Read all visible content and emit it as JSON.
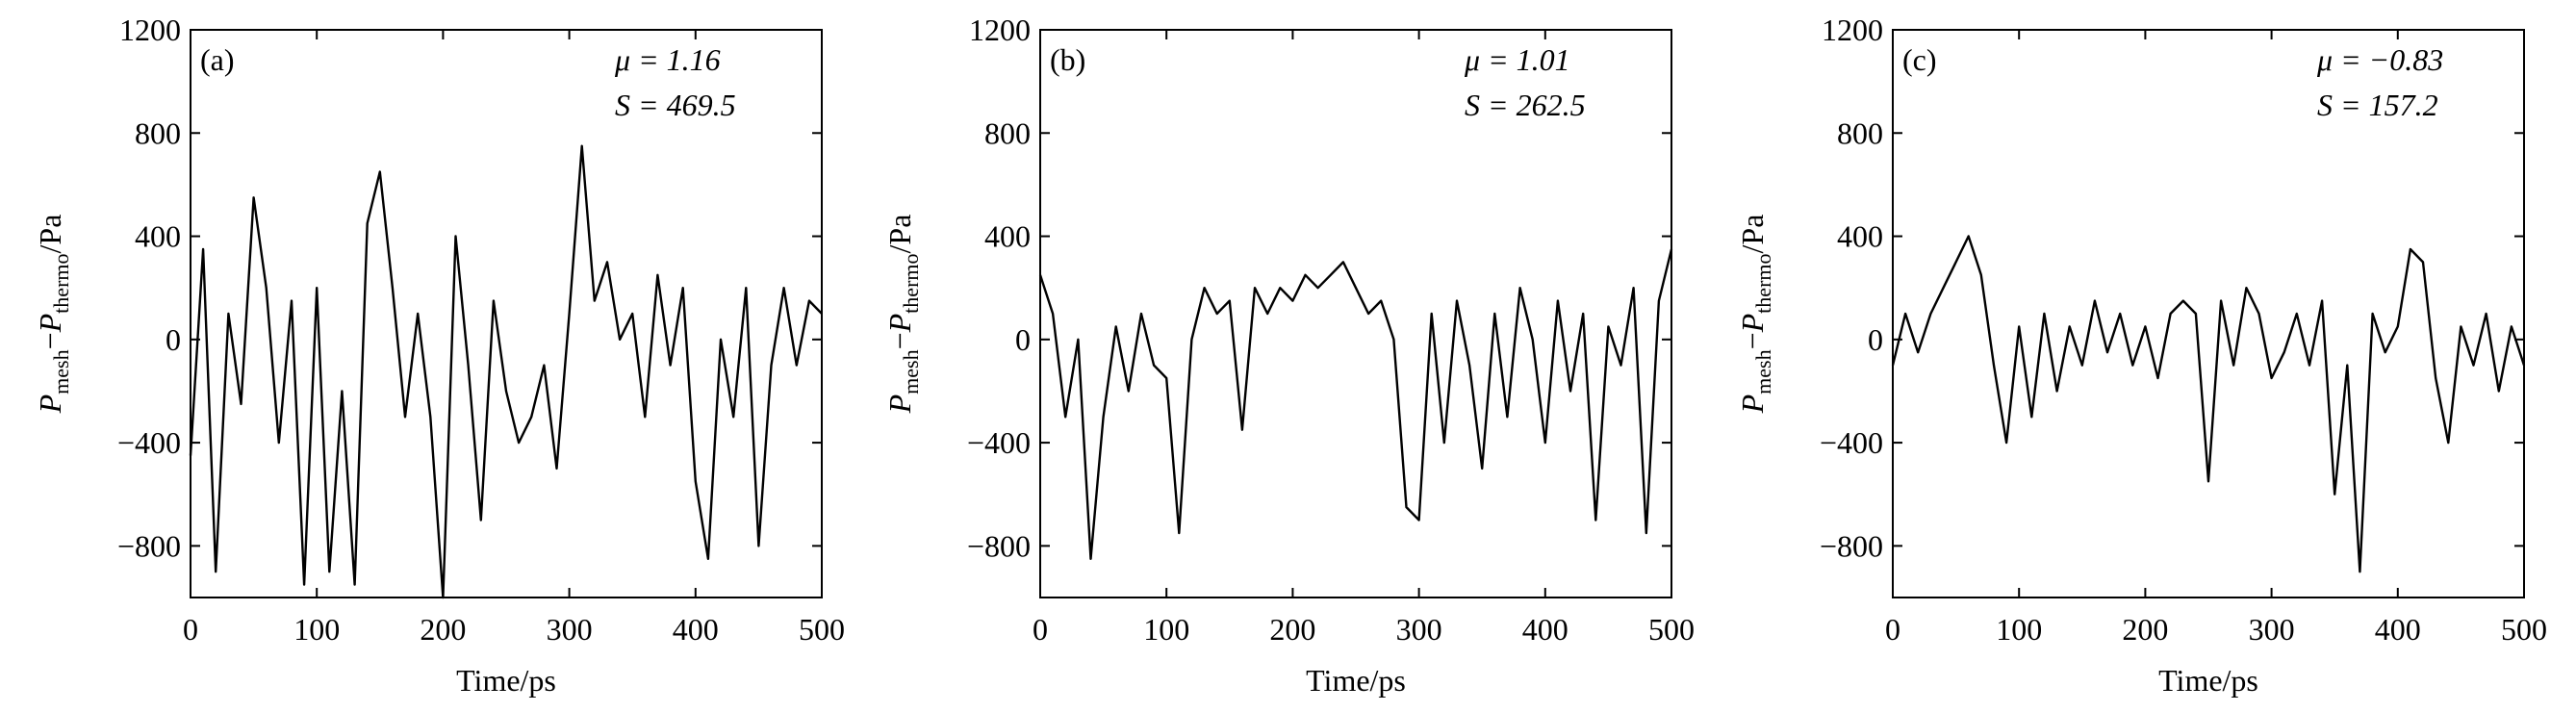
{
  "chart_data": [
    {
      "type": "line",
      "label": "(a)",
      "annotations": [
        "μ = 1.16",
        "S = 469.5"
      ],
      "xlabel": "Time/ps",
      "ylabel": [
        "P",
        "mesh",
        "−",
        "P",
        "thermo",
        "/Pa"
      ],
      "color": "#000000",
      "x": [
        0,
        10,
        20,
        30,
        40,
        50,
        60,
        70,
        80,
        90,
        100,
        110,
        120,
        130,
        140,
        150,
        160,
        170,
        180,
        190,
        200,
        210,
        220,
        230,
        240,
        250,
        260,
        270,
        280,
        290,
        300,
        310,
        320,
        330,
        340,
        350,
        360,
        370,
        380,
        390,
        400,
        410,
        420,
        430,
        440,
        450,
        460,
        470,
        480,
        490,
        500
      ],
      "values": [
        -450,
        350,
        -900,
        100,
        -250,
        550,
        200,
        -400,
        150,
        -950,
        200,
        -900,
        -200,
        -950,
        450,
        650,
        200,
        -300,
        100,
        -300,
        -1000,
        400,
        -100,
        -700,
        150,
        -200,
        -400,
        -300,
        -100,
        -500,
        100,
        750,
        150,
        300,
        0,
        100,
        -300,
        250,
        -100,
        200,
        -550,
        -850,
        0,
        -300,
        200,
        -800,
        -100,
        200,
        -100,
        150,
        100
      ],
      "xlim": [
        0,
        500
      ],
      "ylim": [
        -1000,
        1200
      ],
      "xticks": [
        0,
        100,
        200,
        300,
        400,
        500
      ],
      "yticks": [
        {
          "value": -800,
          "label": "−800"
        },
        {
          "value": -400,
          "label": "−400"
        },
        0,
        400,
        800,
        1200
      ]
    },
    {
      "type": "line",
      "label": "(b)",
      "annotations": [
        "μ = 1.01",
        "S = 262.5"
      ],
      "xlabel": "Time/ps",
      "ylabel": [
        "P",
        "mesh",
        "−",
        "P",
        "thermo",
        "/Pa"
      ],
      "color": "#000000",
      "x": [
        0,
        10,
        20,
        30,
        40,
        50,
        60,
        70,
        80,
        90,
        100,
        110,
        120,
        130,
        140,
        150,
        160,
        170,
        180,
        190,
        200,
        210,
        220,
        230,
        240,
        250,
        260,
        270,
        280,
        290,
        300,
        310,
        320,
        330,
        340,
        350,
        360,
        370,
        380,
        390,
        400,
        410,
        420,
        430,
        440,
        450,
        460,
        470,
        480,
        490,
        500
      ],
      "values": [
        250,
        100,
        -300,
        0,
        -850,
        -300,
        50,
        -200,
        100,
        -100,
        -150,
        -750,
        0,
        200,
        100,
        150,
        -350,
        200,
        100,
        200,
        150,
        250,
        200,
        250,
        300,
        200,
        100,
        150,
        0,
        -650,
        -700,
        100,
        -400,
        150,
        -100,
        -500,
        100,
        -300,
        200,
        0,
        -400,
        150,
        -200,
        100,
        -700,
        50,
        -100,
        200,
        -750,
        150,
        350
      ],
      "xlim": [
        0,
        500
      ],
      "ylim": [
        -1000,
        1200
      ],
      "xticks": [
        0,
        100,
        200,
        300,
        400,
        500
      ],
      "yticks": [
        {
          "value": -800,
          "label": "−800"
        },
        {
          "value": -400,
          "label": "−400"
        },
        0,
        400,
        800,
        1200
      ]
    },
    {
      "type": "line",
      "label": "(c)",
      "annotations": [
        "μ = −0.83",
        "S = 157.2"
      ],
      "xlabel": "Time/ps",
      "ylabel": [
        "P",
        "mesh",
        "−",
        "P",
        "thermo",
        "/Pa"
      ],
      "color": "#000000",
      "x": [
        0,
        10,
        20,
        30,
        40,
        50,
        60,
        70,
        80,
        90,
        100,
        110,
        120,
        130,
        140,
        150,
        160,
        170,
        180,
        190,
        200,
        210,
        220,
        230,
        240,
        250,
        260,
        270,
        280,
        290,
        300,
        310,
        320,
        330,
        340,
        350,
        360,
        370,
        380,
        390,
        400,
        410,
        420,
        430,
        440,
        450,
        460,
        470,
        480,
        490,
        500
      ],
      "values": [
        -100,
        100,
        -50,
        100,
        200,
        300,
        400,
        250,
        -100,
        -400,
        50,
        -300,
        100,
        -200,
        50,
        -100,
        150,
        -50,
        100,
        -100,
        50,
        -150,
        100,
        150,
        100,
        -550,
        150,
        -100,
        200,
        100,
        -150,
        -50,
        100,
        -100,
        150,
        -600,
        -100,
        -900,
        100,
        -50,
        50,
        350,
        300,
        -150,
        -400,
        50,
        -100,
        100,
        -200,
        50,
        -100
      ],
      "xlim": [
        0,
        500
      ],
      "ylim": [
        -1000,
        1200
      ],
      "xticks": [
        0,
        100,
        200,
        300,
        400,
        500
      ],
      "yticks": [
        {
          "value": -800,
          "label": "−800"
        },
        {
          "value": -400,
          "label": "−400"
        },
        0,
        400,
        800,
        1200
      ]
    }
  ]
}
